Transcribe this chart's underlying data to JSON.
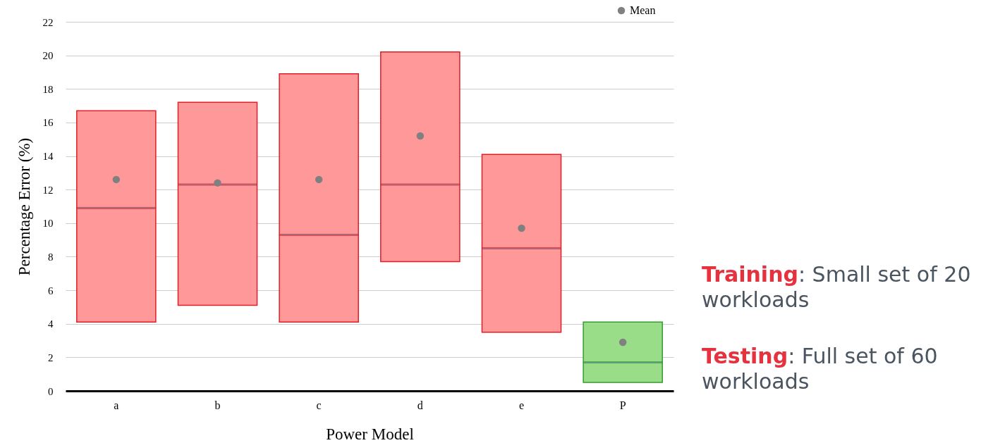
{
  "chart_data": {
    "type": "box",
    "xlabel": "Power Model",
    "ylabel": "Percentage Error (%)",
    "categories": [
      "a",
      "b",
      "c",
      "d",
      "e",
      "P"
    ],
    "colors": [
      "#ff9999",
      "#ff9999",
      "#ff9999",
      "#ff9999",
      "#ff9999",
      "#99dd88"
    ],
    "boxes": [
      {
        "low": 4.1,
        "q1": 4.1,
        "median": 10.9,
        "q3": 16.7,
        "high": 16.7
      },
      {
        "low": 5.1,
        "q1": 5.1,
        "median": 12.3,
        "q3": 17.2,
        "high": 17.2
      },
      {
        "low": 4.1,
        "q1": 4.1,
        "median": 9.3,
        "q3": 18.9,
        "high": 18.9
      },
      {
        "low": 7.7,
        "q1": 7.7,
        "median": 12.3,
        "q3": 20.2,
        "high": 20.2
      },
      {
        "low": 3.5,
        "q1": 3.5,
        "median": 8.5,
        "q3": 14.1,
        "high": 14.1
      },
      {
        "low": 0.5,
        "q1": 0.5,
        "median": 1.7,
        "q3": 4.1,
        "high": 4.1
      }
    ],
    "series": [
      {
        "name": "Mean",
        "type": "scatter",
        "color": "#808080",
        "x": [
          "a",
          "b",
          "c",
          "d",
          "e",
          "P"
        ],
        "values": [
          12.6,
          12.4,
          12.6,
          15.2,
          9.7,
          2.9
        ]
      }
    ],
    "ylim": [
      0,
      22
    ],
    "yticks": [
      0,
      2,
      4,
      6,
      8,
      10,
      12,
      14,
      16,
      18,
      20,
      22
    ],
    "grid": "y",
    "legend": "top right",
    "marker": "circle",
    "annotations": [
      "Training: Small set of 20 workloads",
      "Testing: Full set of 60 workloads"
    ]
  }
}
